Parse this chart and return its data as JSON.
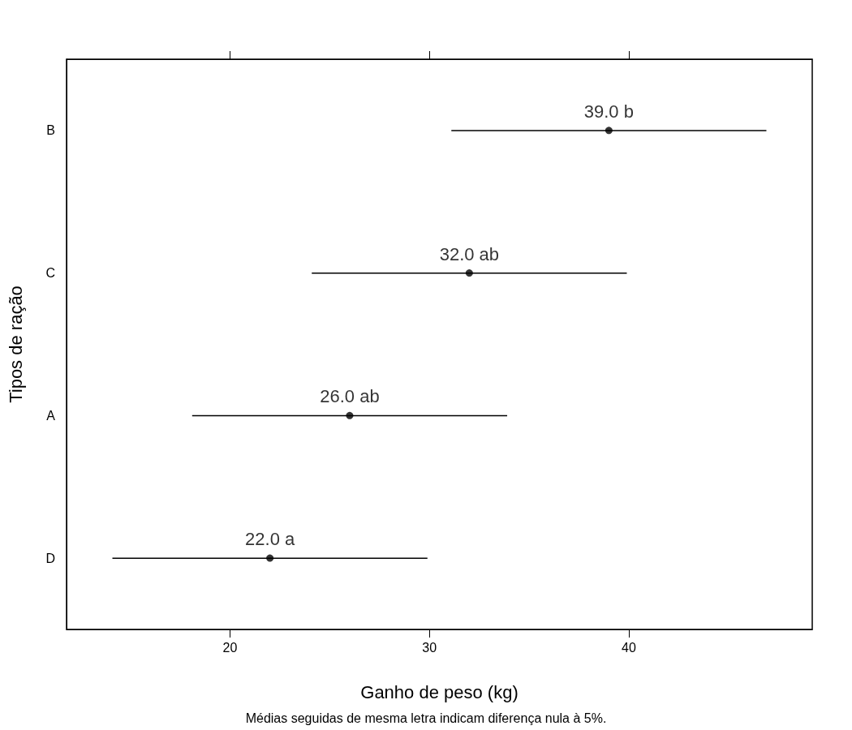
{
  "chart_data": {
    "type": "scatter",
    "orientation": "horizontal",
    "xlabel": "Ganho de peso (kg)",
    "ylabel": "Tipos de ração",
    "categories": [
      "B",
      "C",
      "A",
      "D"
    ],
    "values": [
      39.0,
      32.0,
      26.0,
      22.0
    ],
    "errors": [
      7.9,
      7.9,
      7.9,
      7.9
    ],
    "value_labels": [
      "39.0 b",
      "32.0 ab",
      "26.0 ab",
      "22.0 a"
    ],
    "color": "#000000",
    "marker": "circle",
    "xlim": [
      11.8,
      49.2
    ],
    "xticks": [
      20,
      30,
      40
    ],
    "grid": false,
    "annotations": [
      "Médias seguidas de mesma letra indicam diferença nula à 5%."
    ]
  }
}
